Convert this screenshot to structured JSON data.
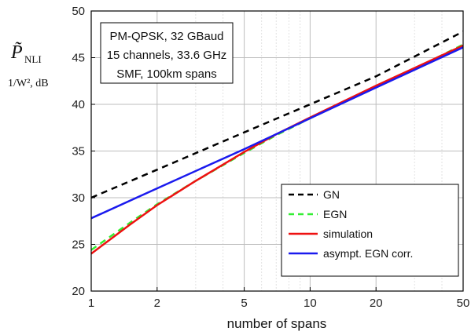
{
  "chart_data": {
    "type": "line",
    "xlabel": "number of spans",
    "ylabel": {
      "symbol": "P̃",
      "subscript": "NLI",
      "unit": "1/W², dB"
    },
    "xscale": "log",
    "xlim": [
      1,
      50
    ],
    "ylim": [
      20,
      50
    ],
    "xticks": [
      1,
      2,
      5,
      10,
      20,
      50
    ],
    "xtick_labels": [
      "1",
      "2",
      "5",
      "10",
      "20",
      "50"
    ],
    "yticks": [
      20,
      25,
      30,
      35,
      40,
      45,
      50
    ],
    "ytick_labels": [
      "20",
      "25",
      "30",
      "35",
      "40",
      "45",
      "50"
    ],
    "grid": true,
    "annotation": [
      "PM-QPSK, 32 GBaud",
      "15 channels, 33.6 GHz",
      "SMF, 100km spans"
    ],
    "legend_position": "bottom-right",
    "series": [
      {
        "name": "GN",
        "color": "#000000",
        "style": "dashed",
        "x": [
          1,
          2,
          5,
          10,
          20,
          50
        ],
        "y": [
          30.0,
          33.0,
          37.0,
          40.0,
          43.0,
          47.8
        ]
      },
      {
        "name": "EGN",
        "color": "#33ee33",
        "style": "dashed",
        "x": [
          1,
          1.5,
          2,
          3,
          5,
          7,
          10,
          20,
          30,
          50
        ],
        "y": [
          24.4,
          27.3,
          29.3,
          31.8,
          34.8,
          36.7,
          38.5,
          41.9,
          43.8,
          46.4
        ]
      },
      {
        "name": "simulation",
        "color": "#ee1111",
        "style": "solid",
        "x": [
          1,
          1.5,
          2,
          3,
          5,
          7,
          10,
          20,
          30,
          50
        ],
        "y": [
          24.0,
          27.1,
          29.2,
          31.8,
          34.9,
          36.8,
          38.6,
          42.0,
          43.9,
          46.3
        ]
      },
      {
        "name": "asympt. EGN corr.",
        "color": "#1a1aee",
        "style": "solid",
        "x": [
          1,
          2,
          5,
          10,
          20,
          50
        ],
        "y": [
          27.8,
          31.0,
          35.2,
          38.5,
          41.8,
          46.1
        ]
      }
    ]
  }
}
